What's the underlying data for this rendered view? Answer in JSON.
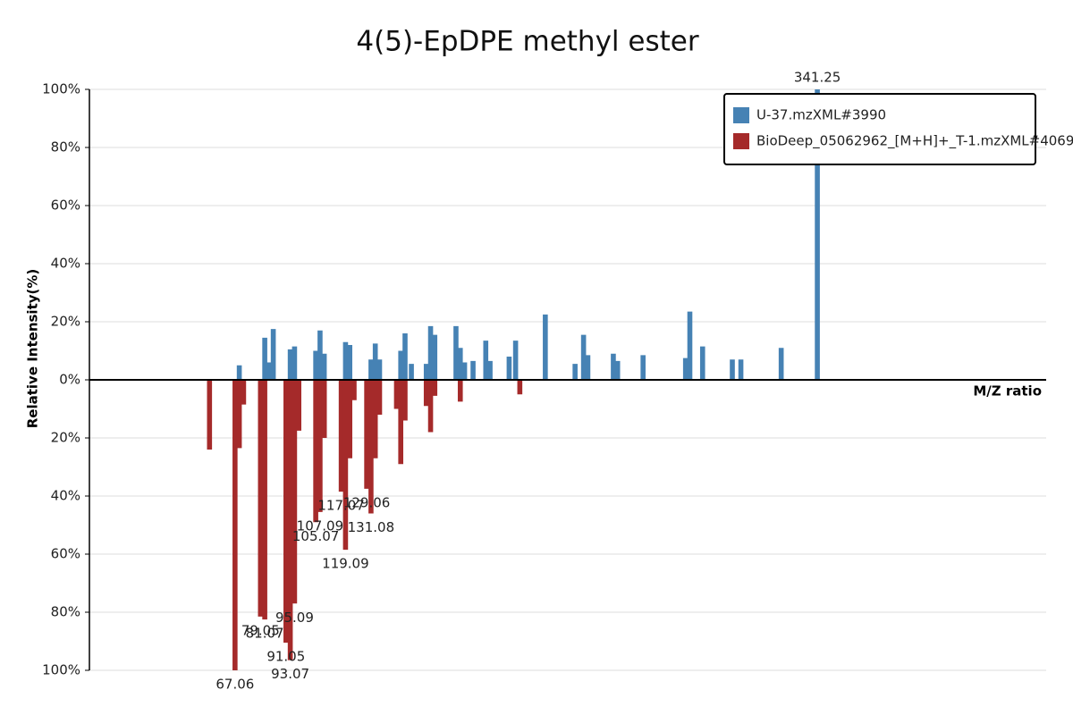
{
  "chart_data": {
    "type": "mirror-bar",
    "title": "4(5)-EpDPE methyl ester",
    "y_label": "Relative Intensity(%)",
    "x_label": "M/Z ratio",
    "xlim": [
      -1.5,
      449
    ],
    "ylim": [
      -100,
      100
    ],
    "yticks": [
      {
        "value": 100,
        "label": "100%"
      },
      {
        "value": 80,
        "label": "80%"
      },
      {
        "value": 60,
        "label": "60%"
      },
      {
        "value": 40,
        "label": "40%"
      },
      {
        "value": 20,
        "label": "20%"
      },
      {
        "value": 0,
        "label": "0%"
      },
      {
        "value": -20,
        "label": "20%"
      },
      {
        "value": -40,
        "label": "40%"
      },
      {
        "value": -60,
        "label": "60%"
      },
      {
        "value": -80,
        "label": "80%"
      },
      {
        "value": -100,
        "label": "100%"
      }
    ],
    "grid": true,
    "legend": "top-right",
    "series": [
      {
        "name": "U-37.mzXML#3990",
        "color": "#4682b4",
        "x": [
          69.07,
          81.07,
          83.05,
          85.07,
          93.07,
          95.09,
          105.07,
          107.09,
          109.07,
          119.09,
          121.1,
          131.08,
          133.1,
          135.12,
          145.1,
          147.12,
          150.1,
          157.12,
          159.14,
          161.13,
          171.1,
          173.13,
          175.15,
          179.14,
          185.13,
          187.15,
          196.13,
          199.17,
          213.16,
          227.18,
          231.17,
          233.19,
          245.19,
          247.2,
          259.19,
          279.2,
          281.22,
          287.22,
          301.22,
          305.25,
          324.23,
          341.25
        ],
        "values": [
          5,
          14.5,
          6,
          17.5,
          10.5,
          11.5,
          10,
          17,
          9,
          13,
          12,
          7,
          12.5,
          7,
          10,
          16,
          5.5,
          5.5,
          18.5,
          15.5,
          18.5,
          11,
          6,
          6.5,
          13.5,
          6.5,
          8,
          13.5,
          22.5,
          5.5,
          15.5,
          8.5,
          9,
          6.5,
          8.5,
          7.5,
          23.5,
          11.5,
          7,
          7,
          11,
          100
        ]
      },
      {
        "name": "BioDeep_05062962_[M+H]+_T-1.mzXML#4069",
        "color": "#a52a2a",
        "x": [
          55.05,
          67.06,
          69.07,
          71.09,
          79.05,
          81.07,
          91.05,
          93.07,
          95.09,
          97.1,
          105.07,
          107.09,
          109.1,
          117.07,
          119.09,
          121.1,
          123.12,
          129.06,
          131.08,
          133.1,
          135.12,
          143.1,
          145.1,
          147.12,
          157.12,
          159.14,
          161.13,
          173.13,
          201.16
        ],
        "values": [
          -24,
          -100,
          -23.5,
          -8.5,
          -81.5,
          -82.5,
          -90.5,
          -96.5,
          -77,
          -17.5,
          -49,
          -45.5,
          -20,
          -38.5,
          -58.5,
          -27,
          -7,
          -37.5,
          -46,
          -27,
          -12,
          -10,
          -29,
          -14,
          -9,
          -18,
          -5.5,
          -7.5,
          -5
        ]
      }
    ]
  }
}
